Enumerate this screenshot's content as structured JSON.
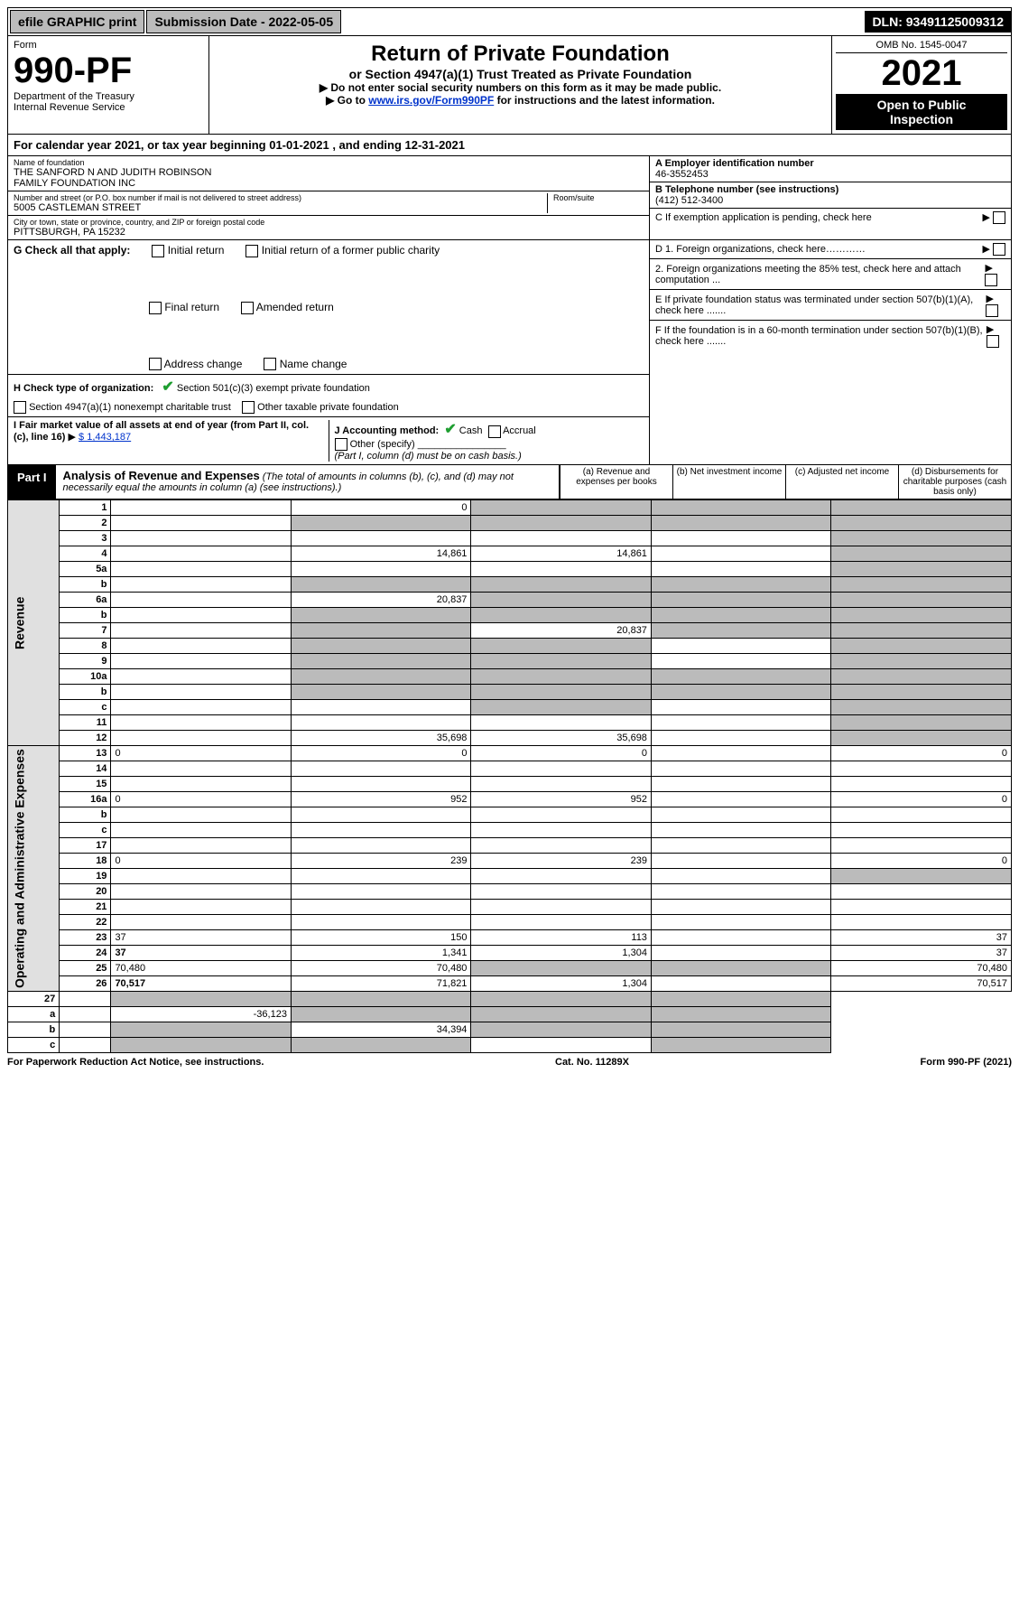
{
  "topBar": {
    "efile": "efile GRAPHIC print",
    "subLabel": "Submission Date - 2022-05-05",
    "dln": "DLN: 93491125009312"
  },
  "header": {
    "form": "Form",
    "number": "990-PF",
    "dept": "Department of the Treasury\nInternal Revenue Service",
    "title": "Return of Private Foundation",
    "sub": "or Section 4947(a)(1) Trust Treated as Private Foundation",
    "note1": "▶ Do not enter social security numbers on this form as it may be made public.",
    "note2": "▶ Go to www.irs.gov/Form990PF for instructions and the latest information.",
    "linkText": "www.irs.gov/Form990PF",
    "omb": "OMB No. 1545-0047",
    "year": "2021",
    "open": "Open to Public\nInspection"
  },
  "yearRow": "For calendar year 2021, or tax year beginning 01-01-2021                          , and ending 12-31-2021",
  "nameBox": {
    "label": "Name of foundation",
    "name": "THE SANFORD N AND JUDITH ROBINSON\nFAMILY FOUNDATION INC",
    "addrLabel": "Number and street (or P.O. box number if mail is not delivered to street address)",
    "addr": "5005 CASTLEMAN STREET",
    "room": "Room/suite",
    "cityLabel": "City or town, state or province, country, and ZIP or foreign postal code",
    "city": "PITTSBURGH, PA  15232"
  },
  "rightTop": {
    "a": "A Employer identification number",
    "ein": "46-3552453",
    "b": "B Telephone number (see instructions)",
    "phone": "(412) 512-3400",
    "c": "C If exemption application is pending, check here",
    "d1": "D 1. Foreign organizations, check here…………",
    "d2": "2. Foreign organizations meeting the 85% test, check here and attach computation ...",
    "e": "E If private foundation status was terminated under section 507(b)(1)(A), check here .......",
    "f": "F If the foundation is in a 60-month termination under section 507(b)(1)(B), check here ......."
  },
  "g": {
    "label": "G Check all that apply:",
    "o1": "Initial return",
    "o2": "Final return",
    "o3": "Address change",
    "o4": "Initial return of a former public charity",
    "o5": "Amended return",
    "o6": "Name change"
  },
  "h": {
    "label": "H Check type of organization:",
    "o1": "Section 501(c)(3) exempt private foundation",
    "o2": "Section 4947(a)(1) nonexempt charitable trust",
    "o3": "Other taxable private foundation"
  },
  "i": {
    "label": "I Fair market value of all assets at end of year (from Part II, col. (c), line 16)",
    "val": "$  1,443,187"
  },
  "j": {
    "label": "J Accounting method:",
    "cash": "Cash",
    "accrual": "Accrual",
    "other": "Other (specify)",
    "note": "(Part I, column (d) must be on cash basis.)"
  },
  "part1": {
    "label": "Part I",
    "title": "Analysis of Revenue and Expenses",
    "desc": "(The total of amounts in columns (b), (c), and (d) may not necessarily equal the amounts in column (a) (see instructions).)",
    "cols": {
      "a": "(a)  Revenue and expenses per books",
      "b": "(b)  Net investment income",
      "c": "(c)  Adjusted net income",
      "d": "(d)  Disbursements for charitable purposes (cash basis only)"
    }
  },
  "sideLabels": {
    "rev": "Revenue",
    "exp": "Operating and Administrative Expenses"
  },
  "rows": [
    {
      "n": "1",
      "d": "",
      "a": "0",
      "b": "",
      "c": "",
      "grey": [
        "b",
        "c",
        "d"
      ]
    },
    {
      "n": "2",
      "d": "",
      "a": "",
      "b": "",
      "c": "",
      "grey": [
        "a",
        "b",
        "c",
        "d"
      ]
    },
    {
      "n": "3",
      "d": "",
      "a": "",
      "b": "",
      "c": "",
      "grey": [
        "d"
      ]
    },
    {
      "n": "4",
      "d": "",
      "a": "14,861",
      "b": "14,861",
      "c": "",
      "grey": [
        "d"
      ]
    },
    {
      "n": "5a",
      "d": "",
      "a": "",
      "b": "",
      "c": "",
      "grey": [
        "d"
      ]
    },
    {
      "n": "b",
      "d": "",
      "a": "",
      "b": "",
      "c": "",
      "grey": [
        "a",
        "b",
        "c",
        "d"
      ]
    },
    {
      "n": "6a",
      "d": "",
      "a": "20,837",
      "b": "",
      "c": "",
      "grey": [
        "b",
        "c",
        "d"
      ]
    },
    {
      "n": "b",
      "d": "",
      "a": "",
      "b": "",
      "c": "",
      "grey": [
        "a",
        "b",
        "c",
        "d"
      ]
    },
    {
      "n": "7",
      "d": "",
      "a": "",
      "b": "20,837",
      "c": "",
      "grey": [
        "a",
        "c",
        "d"
      ]
    },
    {
      "n": "8",
      "d": "",
      "a": "",
      "b": "",
      "c": "",
      "grey": [
        "a",
        "b",
        "d"
      ]
    },
    {
      "n": "9",
      "d": "",
      "a": "",
      "b": "",
      "c": "",
      "grey": [
        "a",
        "b",
        "d"
      ]
    },
    {
      "n": "10a",
      "d": "",
      "a": "",
      "b": "",
      "c": "",
      "grey": [
        "a",
        "b",
        "c",
        "d"
      ]
    },
    {
      "n": "b",
      "d": "",
      "a": "",
      "b": "",
      "c": "",
      "grey": [
        "a",
        "b",
        "c",
        "d"
      ]
    },
    {
      "n": "c",
      "d": "",
      "a": "",
      "b": "",
      "c": "",
      "grey": [
        "b",
        "d"
      ]
    },
    {
      "n": "11",
      "d": "",
      "a": "",
      "b": "",
      "c": "",
      "grey": [
        "d"
      ]
    },
    {
      "n": "12",
      "d": "",
      "a": "35,698",
      "b": "35,698",
      "c": "",
      "grey": [
        "d"
      ],
      "bold": true
    }
  ],
  "expRows": [
    {
      "n": "13",
      "d": "0",
      "a": "0",
      "b": "0",
      "c": ""
    },
    {
      "n": "14",
      "d": "",
      "a": "",
      "b": "",
      "c": ""
    },
    {
      "n": "15",
      "d": "",
      "a": "",
      "b": "",
      "c": ""
    },
    {
      "n": "16a",
      "d": "0",
      "a": "952",
      "b": "952",
      "c": ""
    },
    {
      "n": "b",
      "d": "",
      "a": "",
      "b": "",
      "c": ""
    },
    {
      "n": "c",
      "d": "",
      "a": "",
      "b": "",
      "c": ""
    },
    {
      "n": "17",
      "d": "",
      "a": "",
      "b": "",
      "c": ""
    },
    {
      "n": "18",
      "d": "0",
      "a": "239",
      "b": "239",
      "c": ""
    },
    {
      "n": "19",
      "d": "",
      "a": "",
      "b": "",
      "c": "",
      "grey": [
        "d"
      ]
    },
    {
      "n": "20",
      "d": "",
      "a": "",
      "b": "",
      "c": ""
    },
    {
      "n": "21",
      "d": "",
      "a": "",
      "b": "",
      "c": ""
    },
    {
      "n": "22",
      "d": "",
      "a": "",
      "b": "",
      "c": ""
    },
    {
      "n": "23",
      "d": "37",
      "a": "150",
      "b": "113",
      "c": ""
    },
    {
      "n": "24",
      "d": "37",
      "a": "1,341",
      "b": "1,304",
      "c": "",
      "bold": true
    },
    {
      "n": "25",
      "d": "70,480",
      "a": "70,480",
      "b": "",
      "c": "",
      "grey": [
        "b",
        "c"
      ]
    },
    {
      "n": "26",
      "d": "70,517",
      "a": "71,821",
      "b": "1,304",
      "c": "",
      "bold": true
    }
  ],
  "bottomRows": [
    {
      "n": "27",
      "d": "",
      "a": "",
      "b": "",
      "c": "",
      "grey": [
        "a",
        "b",
        "c",
        "d"
      ]
    },
    {
      "n": "a",
      "d": "",
      "a": "-36,123",
      "b": "",
      "c": "",
      "grey": [
        "b",
        "c",
        "d"
      ],
      "bold": true
    },
    {
      "n": "b",
      "d": "",
      "a": "",
      "b": "34,394",
      "c": "",
      "grey": [
        "a",
        "c",
        "d"
      ],
      "bold": true
    },
    {
      "n": "c",
      "d": "",
      "a": "",
      "b": "",
      "c": "",
      "grey": [
        "a",
        "b",
        "d"
      ],
      "bold": true
    }
  ],
  "footer": {
    "left": "For Paperwork Reduction Act Notice, see instructions.",
    "mid": "Cat. No. 11289X",
    "right": "Form 990-PF (2021)"
  }
}
